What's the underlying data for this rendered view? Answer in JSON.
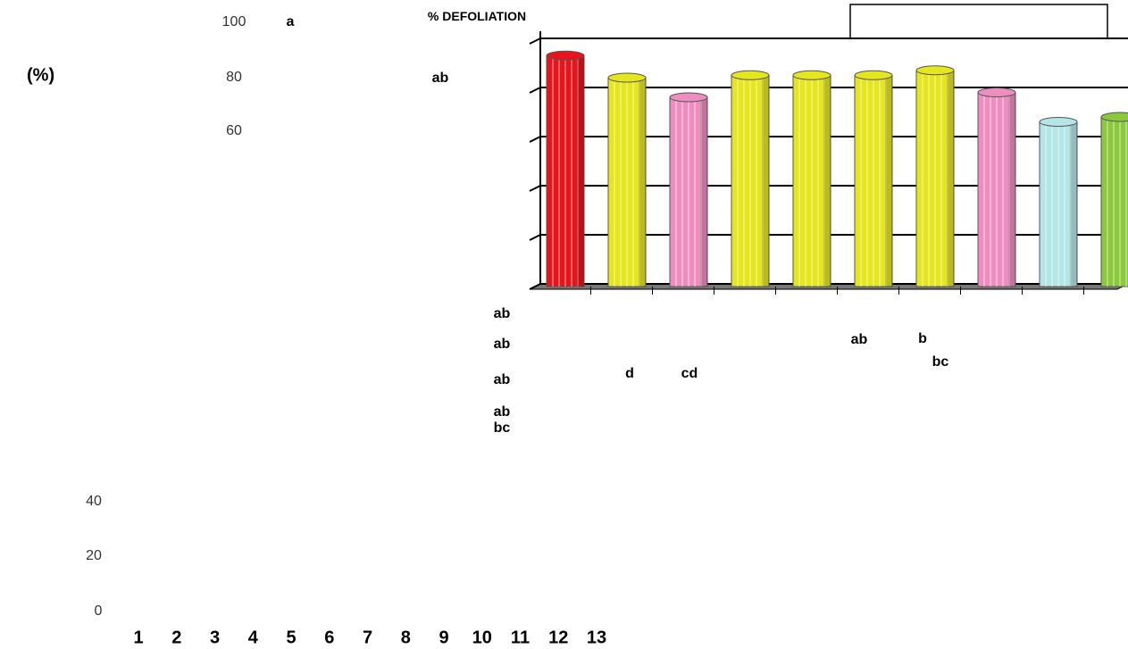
{
  "chart_data": {
    "type": "bar",
    "title": "% DEFOLIATION",
    "y_label": "(%)",
    "categories": [
      "1",
      "2",
      "3",
      "4",
      "5",
      "6",
      "7",
      "8",
      "9",
      "10",
      "11",
      "12",
      "13"
    ],
    "values": [
      93,
      84,
      76,
      85,
      85,
      85,
      87,
      78,
      66,
      68,
      null,
      null,
      null
    ],
    "colors": [
      "#e8141c",
      "#e6e61e",
      "#ee8ec0",
      "#e6e61e",
      "#e6e61e",
      "#e6e61e",
      "#e6e61e",
      "#ee8ec0",
      "#b4e6e6",
      "#8cc83c",
      null,
      null,
      null
    ],
    "ylim": [
      0,
      100
    ],
    "yticks": [
      0,
      20,
      40,
      60,
      80,
      100
    ],
    "grid": true,
    "annotations": [
      "a",
      "ab",
      "ab",
      "ab",
      "ab",
      "ab",
      "bc",
      "d",
      "cd",
      "ab",
      "b",
      "bc"
    ]
  }
}
